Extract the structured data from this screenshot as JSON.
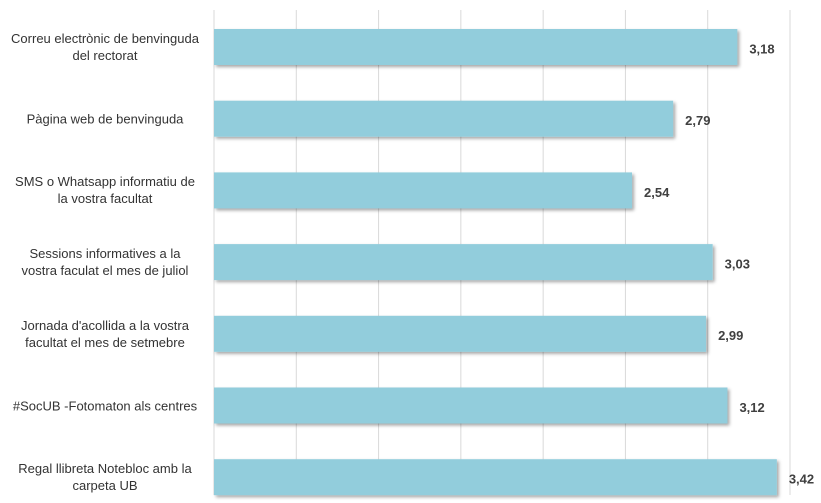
{
  "chart_data": {
    "type": "bar",
    "orientation": "horizontal",
    "categories": [
      "Correu electrònic de benvinguda del rectorat",
      "Pàgina web de benvinguda",
      "SMS o Whatsapp informatiu de la vostra facultat",
      "Sessions informatives a la vostra faculat el mes de juliol",
      "Jornada d'acollida a la vostra facultat el mes de setmebre",
      "#SocUB -Fotomaton als centres",
      "Regal llibreta Notebloc amb la carpeta UB"
    ],
    "values": [
      3.18,
      2.79,
      2.54,
      3.03,
      2.99,
      3.12,
      3.42
    ],
    "value_labels": [
      "3,18",
      "2,79",
      "2,54",
      "3,03",
      "2,99",
      "3,12",
      "3,42"
    ],
    "color": "#92cddc",
    "xlim": [
      0,
      3.5
    ],
    "xticks": [
      0,
      0.5,
      1,
      1.5,
      2,
      2.5,
      3,
      3.5
    ],
    "grid": true
  }
}
